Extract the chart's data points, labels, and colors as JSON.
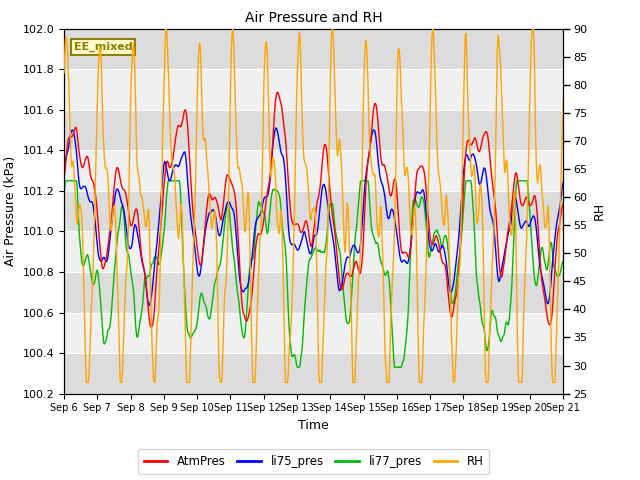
{
  "title": "Air Pressure and RH",
  "xlabel": "Time",
  "ylabel_left": "Air Pressure (kPa)",
  "ylabel_right": "RH",
  "ylim_left": [
    100.2,
    102.0
  ],
  "ylim_right": [
    25,
    90
  ],
  "yticks_left": [
    100.2,
    100.4,
    100.6,
    100.8,
    101.0,
    101.2,
    101.4,
    101.6,
    101.8,
    102.0
  ],
  "yticks_right": [
    25,
    30,
    35,
    40,
    45,
    50,
    55,
    60,
    65,
    70,
    75,
    80,
    85,
    90
  ],
  "xtick_labels": [
    "Sep 6",
    "Sep 7",
    "Sep 8",
    "Sep 9",
    "Sep 10",
    "Sep 11",
    "Sep 12",
    "Sep 13",
    "Sep 14",
    "Sep 15",
    "Sep 16",
    "Sep 17",
    "Sep 18",
    "Sep 19",
    "Sep 20",
    "Sep 21"
  ],
  "annotation_text": "EE_mixed",
  "annotation_color": "#8B8000",
  "annotation_bg": "#FFFACD",
  "colors": {
    "AtmPres": "#FF0000",
    "li75_pres": "#0000FF",
    "li77_pres": "#00BB00",
    "RH": "#FFA500"
  },
  "legend_labels": [
    "AtmPres",
    "li75_pres",
    "li77_pres",
    "RH"
  ],
  "stripe_light": "#F0F0F0",
  "stripe_dark": "#DCDCDC",
  "grid_color": "#FFFFFF"
}
